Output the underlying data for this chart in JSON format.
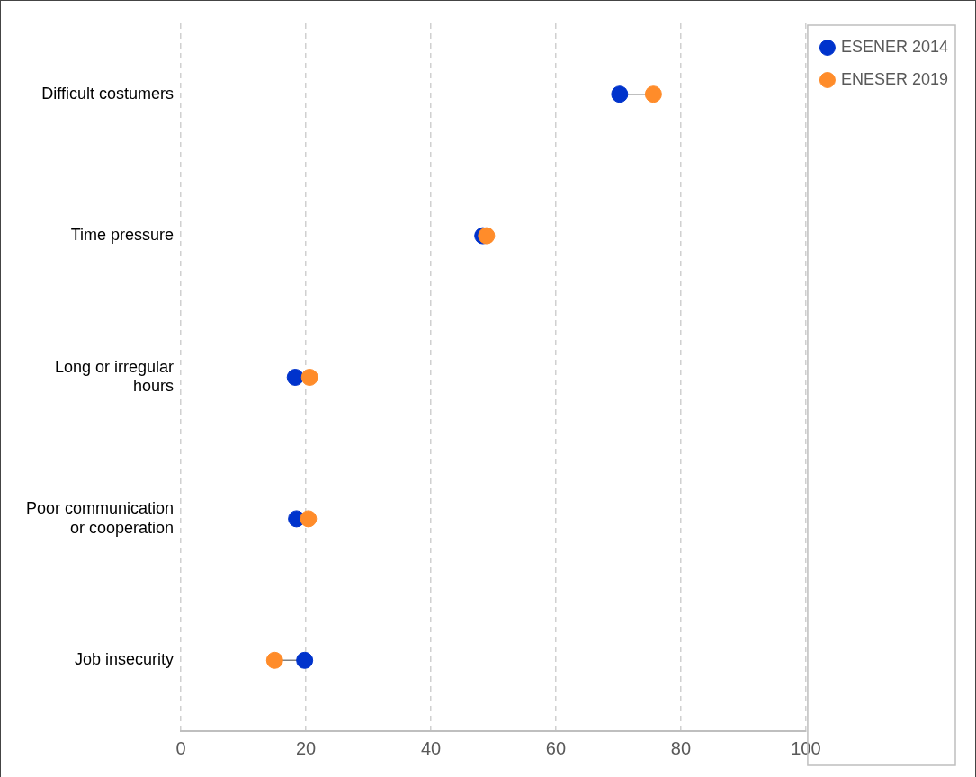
{
  "chart_data": {
    "type": "scatter",
    "orientation": "horizontal",
    "categories": [
      "Difficult costumers",
      "Time pressure",
      "Long or irregular hours",
      "Poor communication or cooperation",
      "Job insecurity"
    ],
    "series": [
      {
        "name": "ESENER 2014",
        "color": "#0033cc",
        "values": [
          70.2,
          48.3,
          18.3,
          18.5,
          19.8
        ]
      },
      {
        "name": "ENESER 2019",
        "color": "#ff8c2a",
        "values": [
          75.6,
          48.9,
          20.6,
          20.4,
          15.0
        ]
      }
    ],
    "xlim": [
      0,
      100
    ],
    "xticks": [
      0,
      20,
      40,
      60,
      80,
      100
    ],
    "grid": "x",
    "legend": "top right",
    "marker": "circle"
  }
}
